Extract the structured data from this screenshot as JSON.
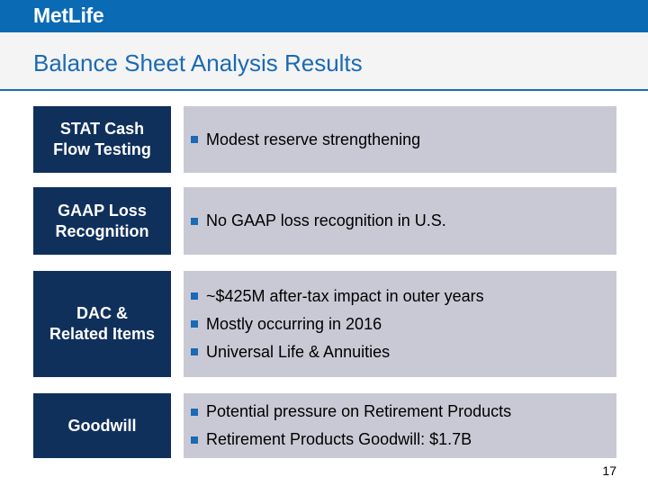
{
  "header": {
    "logo_text": "MetLife",
    "title": "Balance Sheet Analysis Results"
  },
  "rows": [
    {
      "label_lines": [
        "STAT Cash",
        "Flow Testing"
      ],
      "bullets": [
        "Modest reserve strengthening"
      ]
    },
    {
      "label_lines": [
        "GAAP Loss",
        "Recognition"
      ],
      "bullets": [
        "No GAAP loss recognition in U.S."
      ]
    },
    {
      "label_lines": [
        "DAC &",
        "Related Items"
      ],
      "bullets": [
        "~$425M after-tax impact in outer years",
        "Mostly occurring in 2016",
        "Universal Life & Annuities"
      ]
    },
    {
      "label_lines": [
        "Goodwill"
      ],
      "bullets": [
        "Potential pressure on Retirement Products",
        "Retirement Products Goodwill: $1.7B"
      ]
    }
  ],
  "footer": {
    "page_number": "17"
  },
  "colors": {
    "brand_blue": "#0a6ab4",
    "label_navy": "#10305c",
    "content_gray": "#c9c9d6"
  }
}
